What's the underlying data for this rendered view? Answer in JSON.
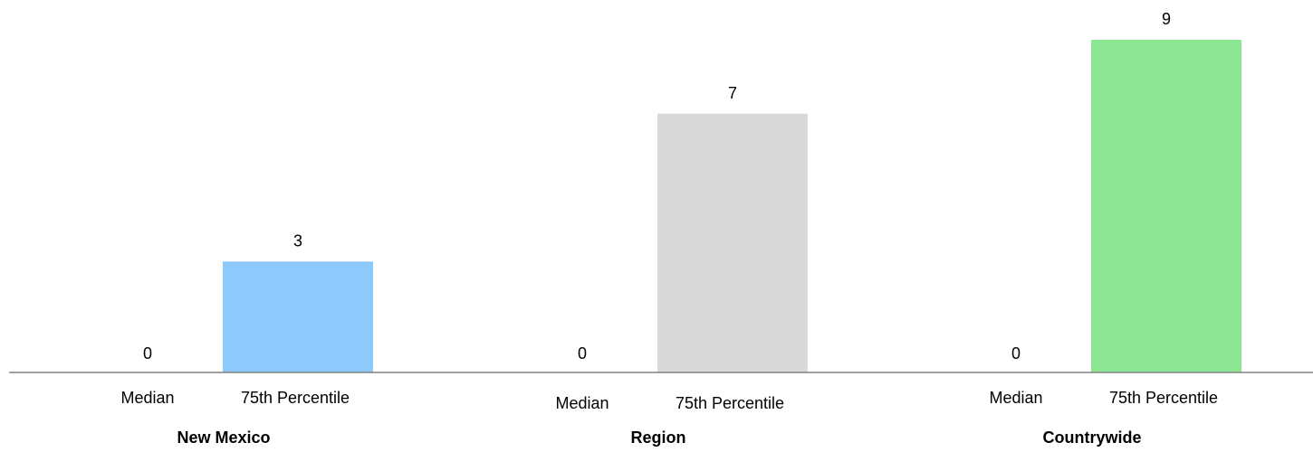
{
  "chart_data": {
    "type": "bar",
    "groups": [
      {
        "label": "New Mexico",
        "categories": [
          "Median",
          "75th Percentile"
        ],
        "values": [
          0,
          3
        ],
        "color": "#8ec9fb"
      },
      {
        "label": "Region",
        "categories": [
          "Median",
          "75th Percentile"
        ],
        "values": [
          0,
          7
        ],
        "color": "#d9d9d9"
      },
      {
        "label": "Countrywide",
        "categories": [
          "Median",
          "75th Percentile"
        ],
        "values": [
          0,
          9
        ],
        "color": "#8ce693"
      }
    ],
    "ylim": [
      0,
      9
    ],
    "grid": false,
    "legend": "none",
    "baseline_color": "#808080"
  }
}
